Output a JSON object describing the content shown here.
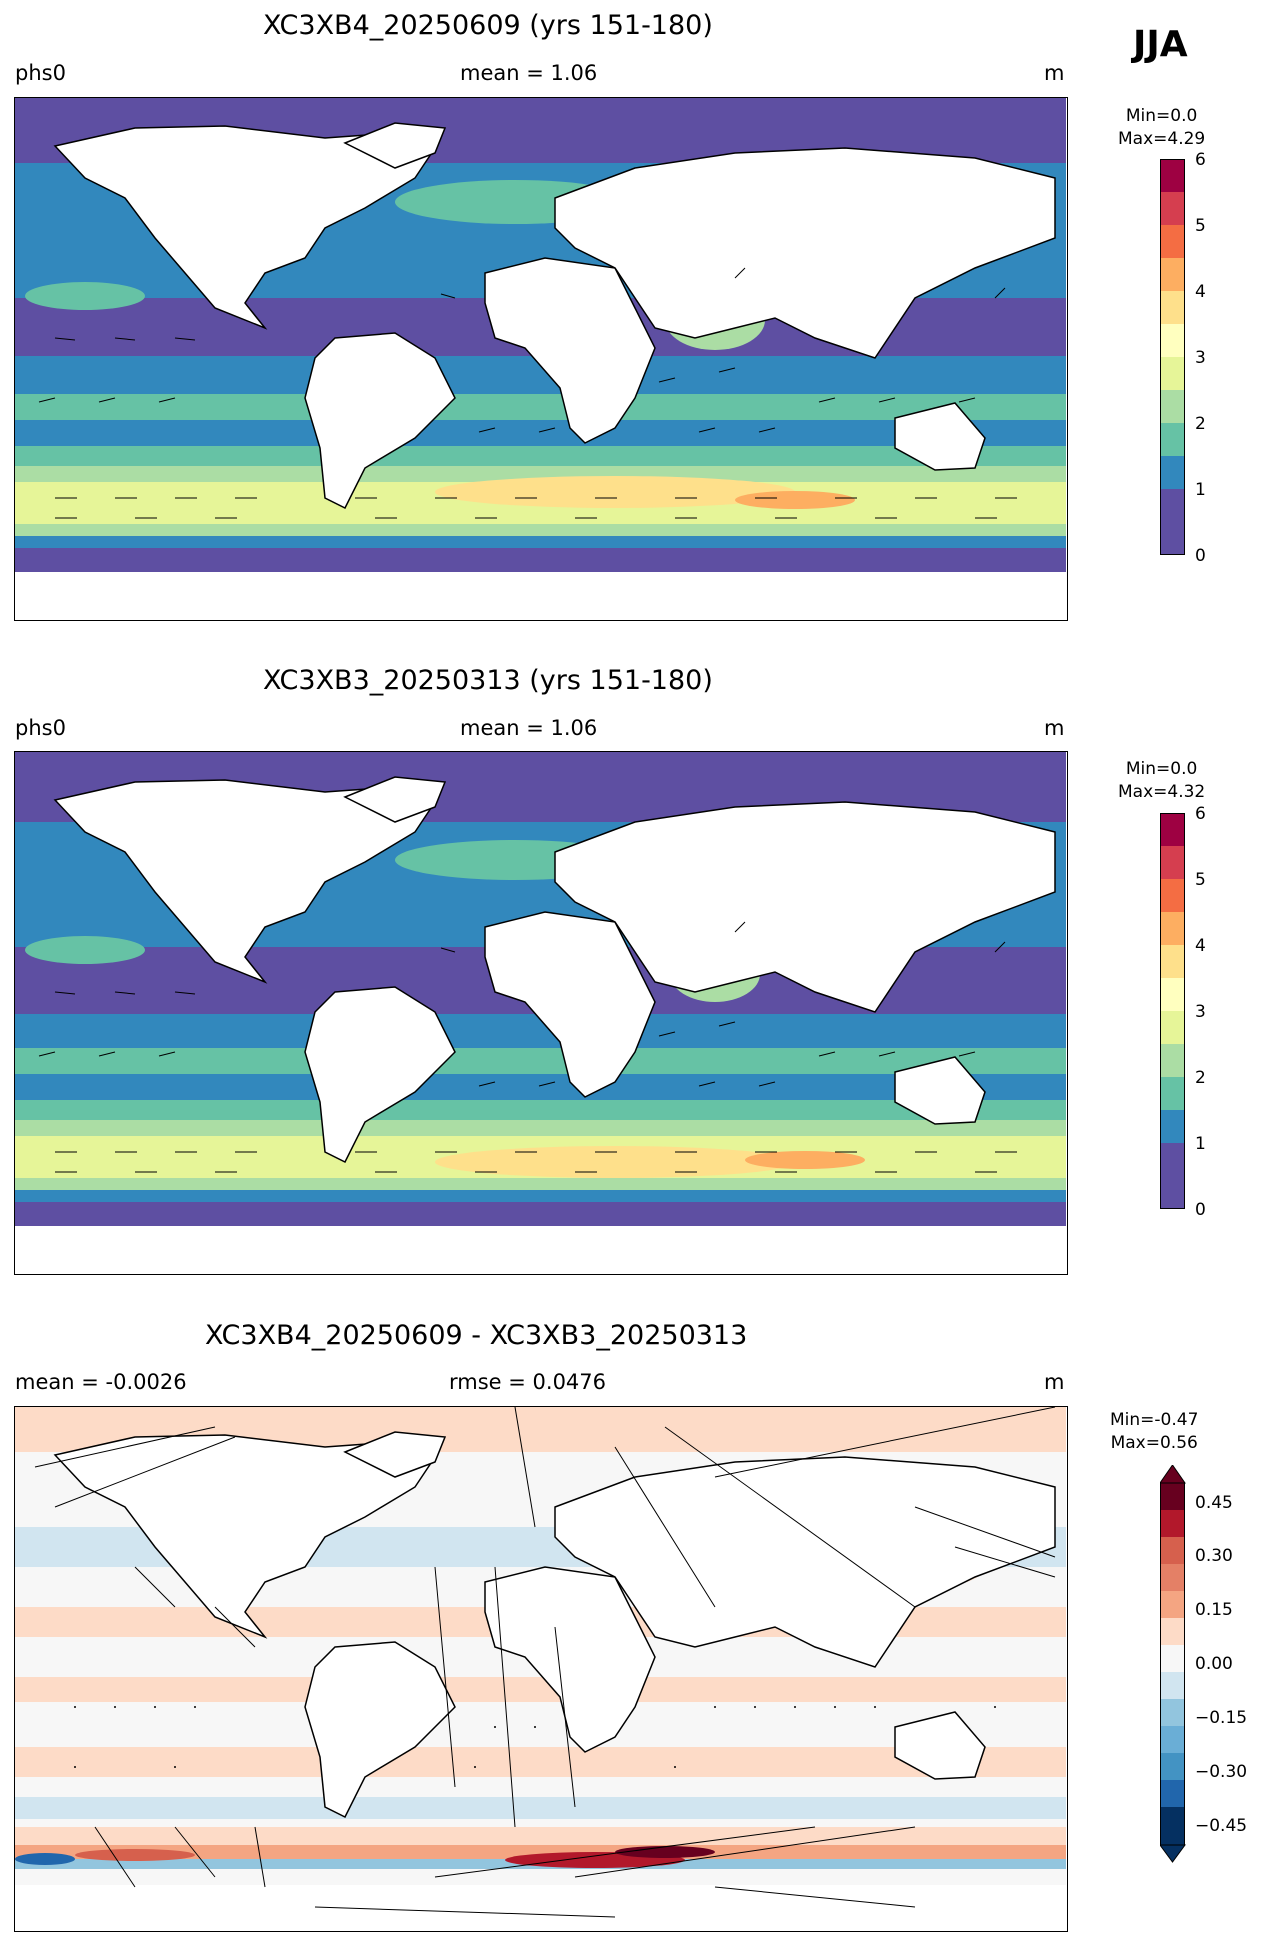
{
  "season": "JJA",
  "panels": [
    {
      "title": "XC3XB4_20250609 (yrs 151-180)",
      "left_label": "phs0",
      "center_label": "mean = 1.06",
      "right_label": "m",
      "colorbar": {
        "min_text": "Min=0.0",
        "max_text": "Max=4.29",
        "ticks": [
          "6",
          "5",
          "4",
          "3",
          "2",
          "1",
          "0"
        ]
      }
    },
    {
      "title": "XC3XB3_20250313 (yrs 151-180)",
      "left_label": "phs0",
      "center_label": "mean = 1.06",
      "right_label": "m",
      "colorbar": {
        "min_text": "Min=0.0",
        "max_text": "Max=4.32",
        "ticks": [
          "6",
          "5",
          "4",
          "3",
          "2",
          "1",
          "0"
        ]
      }
    },
    {
      "title": "XC3XB4_20250609 - XC3XB3_20250313",
      "left_label": "mean = -0.0026",
      "center_label": "rmse = 0.0476",
      "right_label": "m",
      "colorbar": {
        "min_text": "Min=-0.47",
        "max_text": "Max=0.56",
        "ticks": [
          "0.45",
          "0.30",
          "0.15",
          "0.00",
          "−0.15",
          "−0.30",
          "−0.45"
        ]
      }
    }
  ],
  "colors": {
    "seq_scale": [
      "#5e4fa2",
      "#3288bd",
      "#66c2a5",
      "#abdda4",
      "#e6f598",
      "#fee08b",
      "#fdae61",
      "#f46d43",
      "#d53e4f",
      "#9e0142"
    ],
    "div_scale": [
      "#053061",
      "#2166ac",
      "#4393c3",
      "#92c5de",
      "#d1e5f0",
      "#f7f7f7",
      "#fddbc7",
      "#f4a582",
      "#d6604d",
      "#b2182b",
      "#67001f"
    ]
  }
}
